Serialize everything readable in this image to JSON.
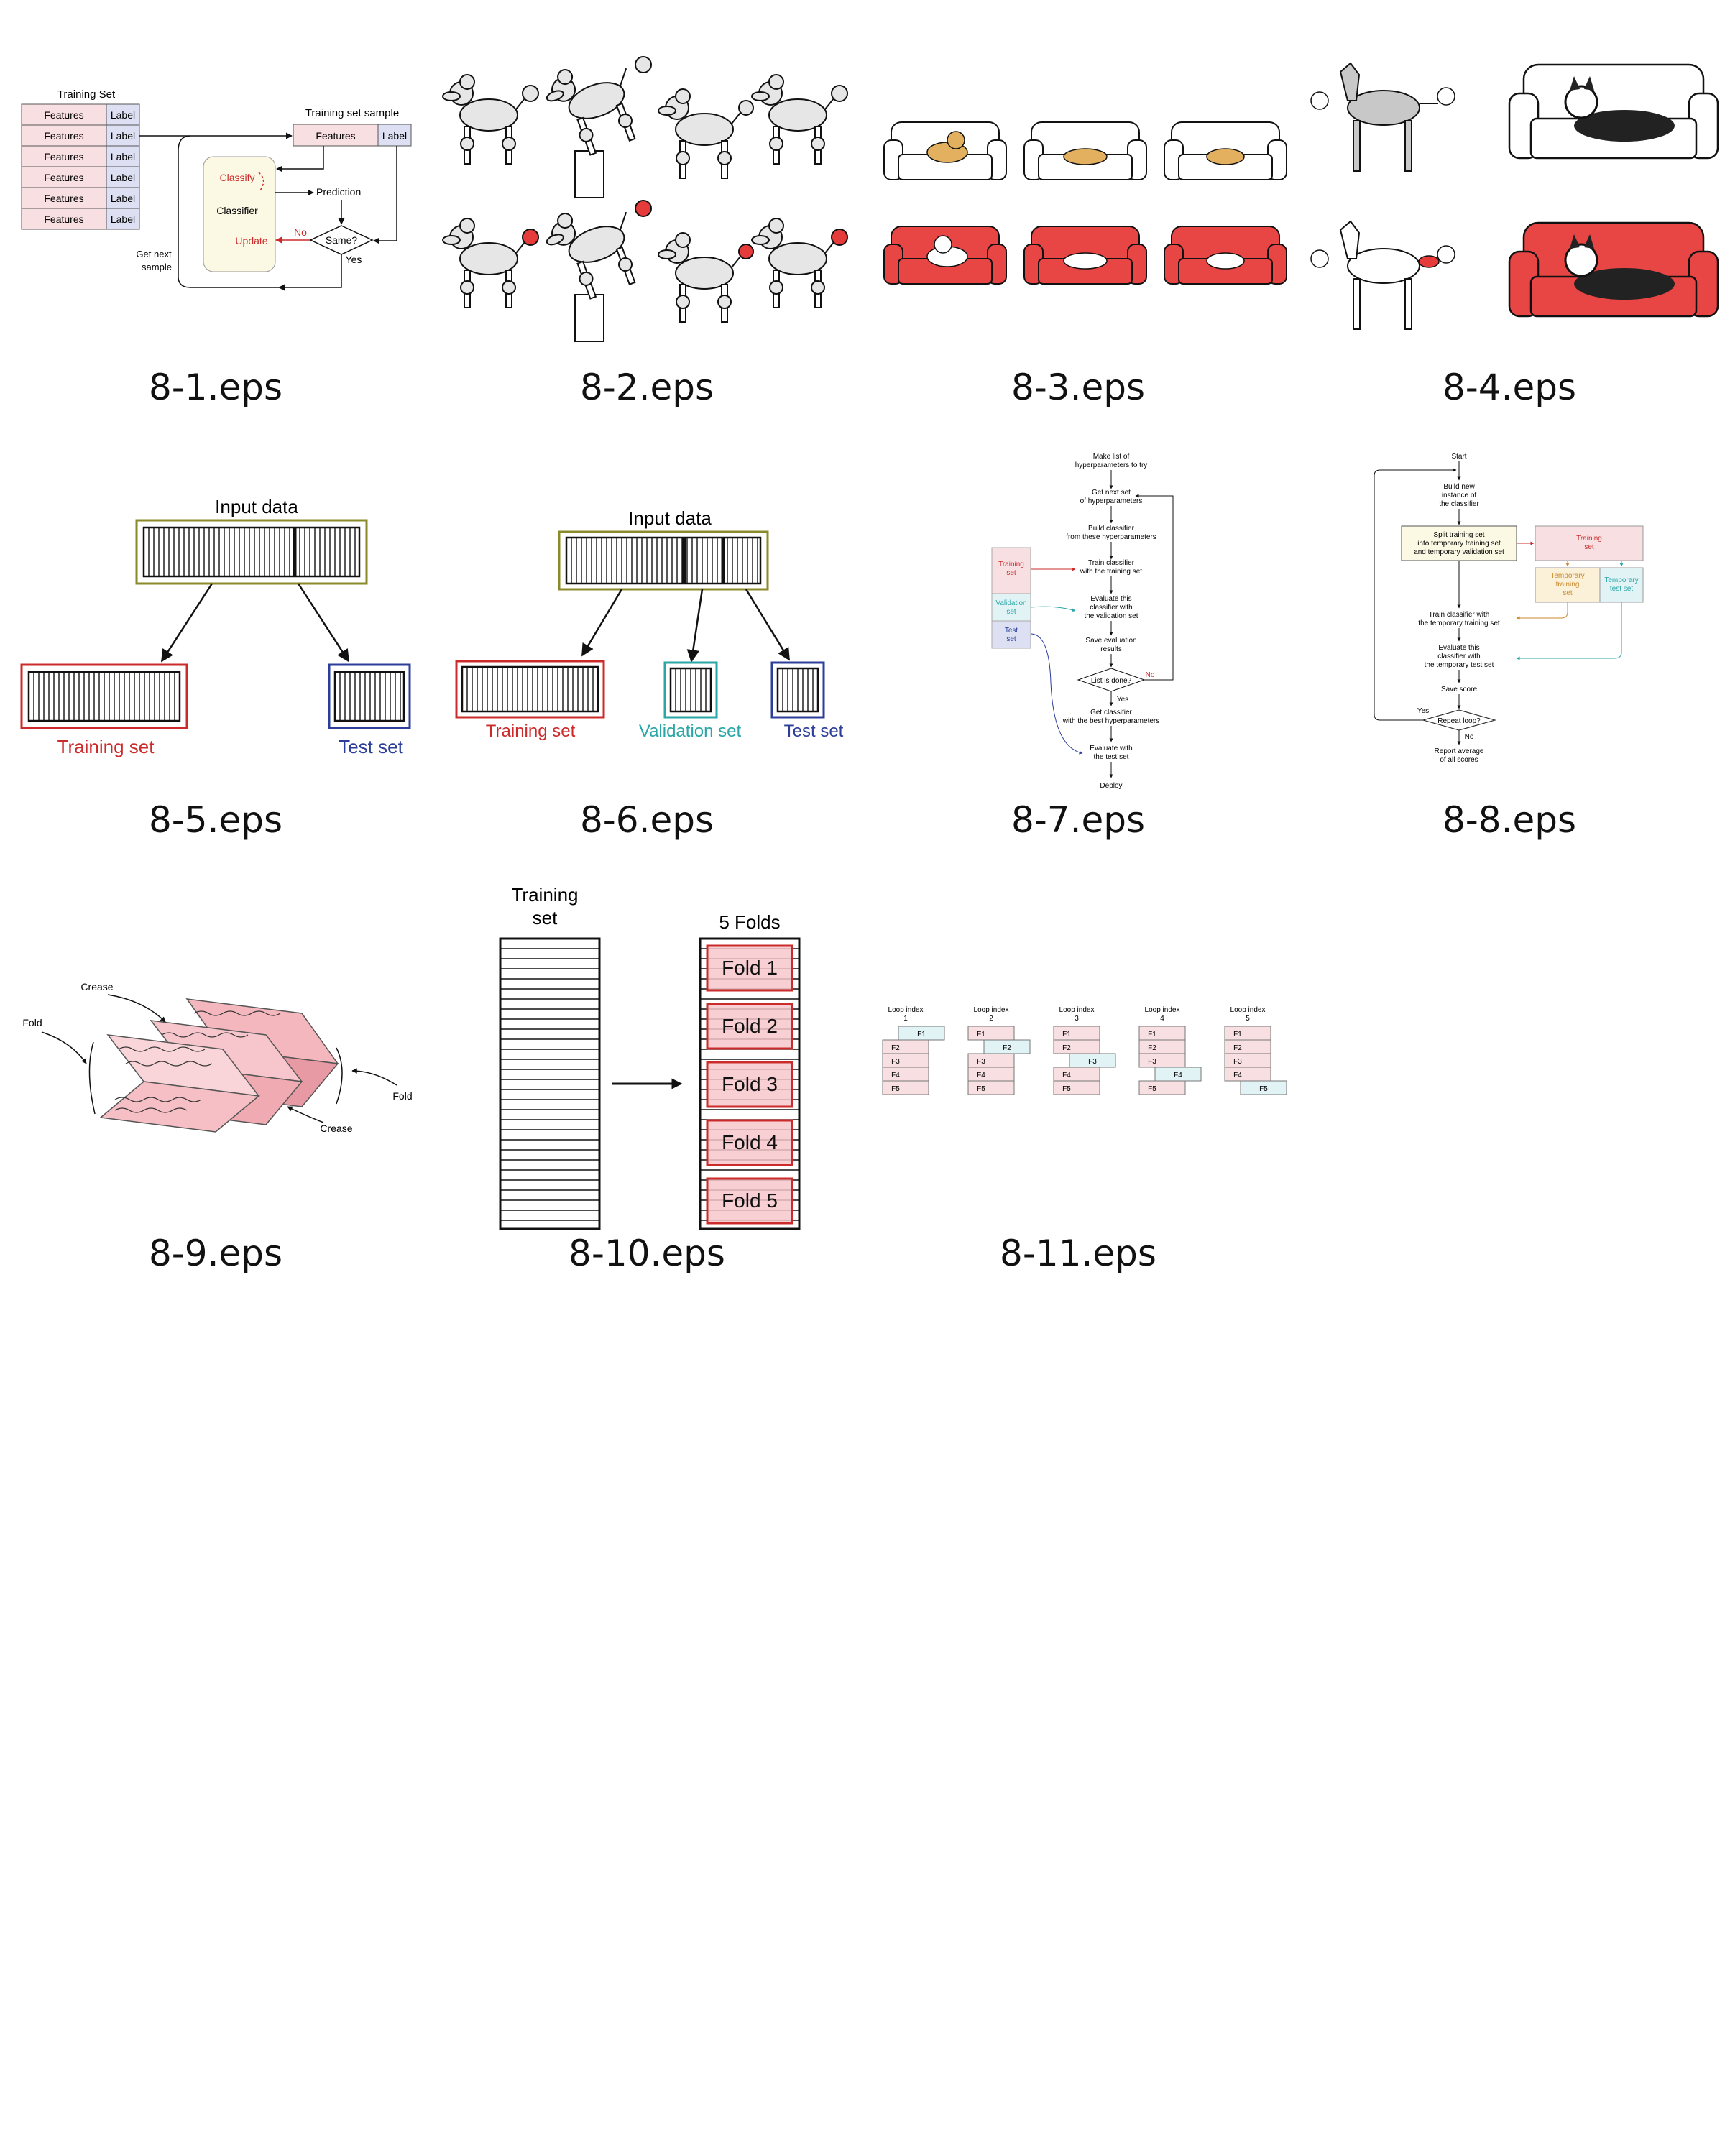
{
  "captions": [
    "8-1.eps",
    "8-2.eps",
    "8-3.eps",
    "8-4.eps",
    "8-5.eps",
    "8-6.eps",
    "8-7.eps",
    "8-8.eps",
    "8-9.eps",
    "8-10.eps",
    "8-11.eps"
  ],
  "fig1": {
    "training_set": "Training Set",
    "features": "Features",
    "label": "Label",
    "sample_title": "Training set sample",
    "classify": "Classify",
    "classifier": "Classifier",
    "update": "Update",
    "prediction": "Prediction",
    "same": "Same?",
    "no": "No",
    "yes": "Yes",
    "get_next_1": "Get next",
    "get_next_2": "sample"
  },
  "fig5": {
    "input": "Input data",
    "train": "Training set",
    "test": "Test set"
  },
  "fig6": {
    "input": "Input data",
    "train": "Training set",
    "val": "Validation set",
    "test": "Test set"
  },
  "fig7": {
    "s1a": "Make list of",
    "s1b": "hyperparameters to try",
    "s2a": "Get next set",
    "s2b": "of hyperparameters",
    "s3a": "Build classifier",
    "s3b": "from these hyperparameters",
    "s4a": "Train classifier",
    "s4b": "with the training set",
    "s5a": "Evaluate this",
    "s5b": "classifier with",
    "s5c": "the validation set",
    "s6a": "Save evaluation",
    "s6b": "results",
    "decision": "List is done?",
    "no": "No",
    "yes": "Yes",
    "s7a": "Get classifier",
    "s7b": "with the best hyperparameters",
    "s8a": "Evaluate with",
    "s8b": "the test set",
    "s9": "Deploy",
    "train_a": "Training",
    "train_b": "set",
    "val_a": "Validation",
    "val_b": "set",
    "test_a": "Test",
    "test_b": "set"
  },
  "fig8": {
    "start": "Start",
    "b1a": "Build new",
    "b1b": "instance of",
    "b1c": "the classifier",
    "sp_a": "Split training set",
    "sp_b": "into temporary training set",
    "sp_c": "and temporary validation set",
    "tr_a": "Training",
    "tr_b": "set",
    "tt_a": "Temporary",
    "tt_b": "training",
    "tt_c": "set",
    "ts_a": "Temporary",
    "ts_b": "test set",
    "t1a": "Train classifier with",
    "t1b": "the temporary training set",
    "e1a": "Evaluate this",
    "e1b": "classifier with",
    "e1c": "the temporary test set",
    "save": "Save score",
    "repeat": "Repeat loop?",
    "yes": "Yes",
    "no": "No",
    "rep_a": "Report average",
    "rep_b": "of all scores"
  },
  "fig9": {
    "crease": "Crease",
    "fold": "Fold"
  },
  "fig10": {
    "train_a": "Training",
    "train_b": "set",
    "folds_title": "5 Folds",
    "folds": [
      "Fold 1",
      "Fold 2",
      "Fold 3",
      "Fold 4",
      "Fold 5"
    ]
  },
  "fig11": {
    "loop_label": "Loop index",
    "indices": [
      "1",
      "2",
      "3",
      "4",
      "5"
    ],
    "folds": [
      "F1",
      "F2",
      "F3",
      "F4",
      "F5"
    ]
  },
  "colors": {
    "pink": "#f7dfe2",
    "lavender": "#dde0f2",
    "red": "#cc2b2b",
    "blue": "#2c3e99",
    "teal": "#2aa6a6",
    "olive": "#8a8a2a",
    "cream": "#fbf8e3",
    "lightblue": "#e2f3f6",
    "couch_red": "#e84545",
    "orange": "#c98a2e"
  }
}
